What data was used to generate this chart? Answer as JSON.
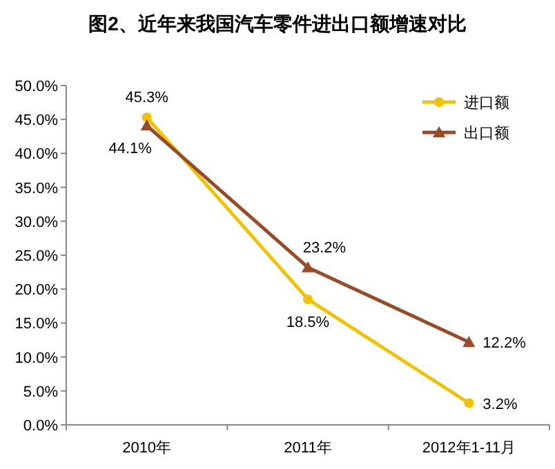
{
  "chart_data": {
    "type": "line",
    "title": "图2、近年来我国汽车零件进出口额增速对比",
    "categories": [
      "2010年",
      "2011年",
      "2012年1-11月"
    ],
    "series": [
      {
        "name": "进口额",
        "color": "#f2c200",
        "marker": "circle",
        "values": [
          45.3,
          18.5,
          3.2
        ],
        "value_labels": [
          "45.3%",
          "18.5%",
          "3.2%"
        ]
      },
      {
        "name": "出口额",
        "color": "#9a4a26",
        "marker": "triangle",
        "values": [
          44.1,
          23.2,
          12.2
        ],
        "value_labels": [
          "44.1%",
          "23.2%",
          "12.2%"
        ]
      }
    ],
    "ylim": [
      0,
      50
    ],
    "yticks": [
      {
        "value": 0,
        "label": "0.0%"
      },
      {
        "value": 5,
        "label": "5.0%"
      },
      {
        "value": 10,
        "label": "10.0%"
      },
      {
        "value": 15,
        "label": "15.0%"
      },
      {
        "value": 20,
        "label": "20.0%"
      },
      {
        "value": 25,
        "label": "25.0%"
      },
      {
        "value": 30,
        "label": "30.0%"
      },
      {
        "value": 35,
        "label": "35.0%"
      },
      {
        "value": 40,
        "label": "40.0%"
      },
      {
        "value": 45,
        "label": "45.0%"
      },
      {
        "value": 50,
        "label": "50.0%"
      }
    ],
    "legend": "top right",
    "grid": false
  }
}
